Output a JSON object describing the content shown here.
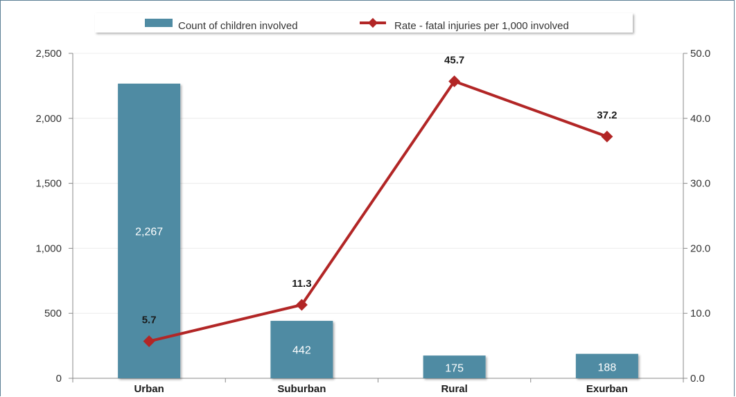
{
  "chart_data": {
    "type": "bar",
    "categories": [
      "Urban",
      "Suburban",
      "Rural",
      "Exurban"
    ],
    "series": [
      {
        "name": "Count of children involved",
        "type": "bar",
        "axis": "left",
        "values": [
          2267,
          442,
          175,
          188
        ],
        "value_labels": [
          "2,267",
          "442",
          "175",
          "188"
        ],
        "color": "#4f8ba3"
      },
      {
        "name": "Rate - fatal injuries per 1,000 involved",
        "type": "line",
        "axis": "right",
        "values": [
          5.7,
          11.3,
          45.7,
          37.2
        ],
        "value_labels": [
          "5.7",
          "11.3",
          "45.7",
          "37.2"
        ],
        "color": "#b22626"
      }
    ],
    "y_left": {
      "ylim": [
        0,
        2500
      ],
      "ticks": [
        0,
        500,
        1000,
        1500,
        2000,
        2500
      ],
      "tick_labels": [
        "0",
        "500",
        "1,000",
        "1,500",
        "2,000",
        "2,500"
      ]
    },
    "y_right": {
      "ylim": [
        0,
        50
      ],
      "ticks": [
        0,
        10,
        20,
        30,
        40,
        50
      ],
      "tick_labels": [
        "0.0",
        "10.0",
        "20.0",
        "30.0",
        "40.0",
        "50.0"
      ]
    },
    "title": "",
    "xlabel": "",
    "ylabel": "",
    "grid": true,
    "legend_position": "top-center"
  }
}
